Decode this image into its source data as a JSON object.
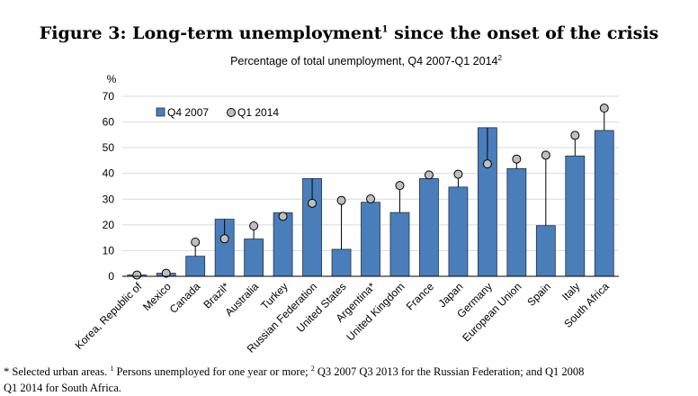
{
  "figure": {
    "title": "Figure 3: Long-term unemployment",
    "title_sup": "1",
    "title_rest": " since the onset of the crisis",
    "subtitle": "Percentage of total unemployment, Q4 2007-Q1 2014",
    "subtitle_sup": "2"
  },
  "chart_data": {
    "type": "bar",
    "ylabel": "%",
    "ylim": [
      0,
      70
    ],
    "yticks": [
      0,
      10,
      20,
      30,
      40,
      50,
      60,
      70
    ],
    "grid": true,
    "legend_position": "top-left",
    "categories": [
      "Korea, Republic of",
      "Mexico",
      "Canada",
      "Brazil*",
      "Australia",
      "Turkey",
      "Russian Federation",
      "United States",
      "Argentina*",
      "United Kingdom",
      "France",
      "Japan",
      "Germany",
      "European Union",
      "Spain",
      "Italy",
      "South Africa"
    ],
    "series": [
      {
        "name": "Q4 2007",
        "style": "bar",
        "color": "#4a7ebb",
        "values": [
          0.5,
          1.2,
          7.8,
          22.2,
          14.5,
          24.7,
          38.0,
          10.5,
          28.8,
          24.8,
          38.0,
          34.7,
          57.8,
          41.9,
          19.7,
          46.8,
          56.7
        ]
      },
      {
        "name": "Q1 2014",
        "style": "marker",
        "color": "#bfbfbf",
        "values": [
          0.5,
          1.2,
          13.3,
          14.6,
          19.6,
          23.3,
          28.4,
          29.5,
          30.1,
          35.3,
          39.4,
          39.7,
          43.7,
          45.6,
          47.1,
          54.8,
          65.4
        ]
      }
    ]
  },
  "footnote": {
    "line1_a": "* Selected urban areas. ",
    "line1_sup1": "1",
    "line1_b": " Persons unemployed for one year or more; ",
    "line1_sup2": "2",
    "line1_c": " Q3 2007 Q3 2013 for the Russian Federation; and Q1 2008",
    "line2": "Q1 2014 for South Africa."
  }
}
